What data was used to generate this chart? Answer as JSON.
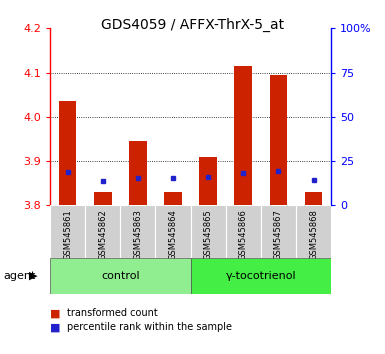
{
  "title": "GDS4059 / AFFX-ThrX-5_at",
  "samples": [
    "GSM545861",
    "GSM545862",
    "GSM545863",
    "GSM545864",
    "GSM545865",
    "GSM545866",
    "GSM545867",
    "GSM545868"
  ],
  "red_values": [
    4.035,
    3.83,
    3.945,
    3.83,
    3.91,
    4.115,
    4.095,
    3.83
  ],
  "blue_values": [
    3.875,
    3.855,
    3.862,
    3.862,
    3.863,
    3.872,
    3.878,
    3.858
  ],
  "y_min": 3.8,
  "y_max": 4.2,
  "y_ticks": [
    3.8,
    3.9,
    4.0,
    4.1,
    4.2
  ],
  "y2_ticks": [
    0,
    25,
    50,
    75,
    100
  ],
  "y2_labels": [
    "0",
    "25",
    "50",
    "75",
    "100%"
  ],
  "groups": [
    {
      "label": "control",
      "start": 0,
      "end": 3,
      "color": "#90EE90"
    },
    {
      "label": "γ-tocotrienol",
      "start": 4,
      "end": 7,
      "color": "#44EE44"
    }
  ],
  "bar_color": "#CC2200",
  "dot_color": "#2222CC",
  "bar_width": 0.5,
  "plot_bg": "#FFFFFF",
  "title_fontsize": 10,
  "tick_fontsize": 8,
  "label_fontsize": 7
}
